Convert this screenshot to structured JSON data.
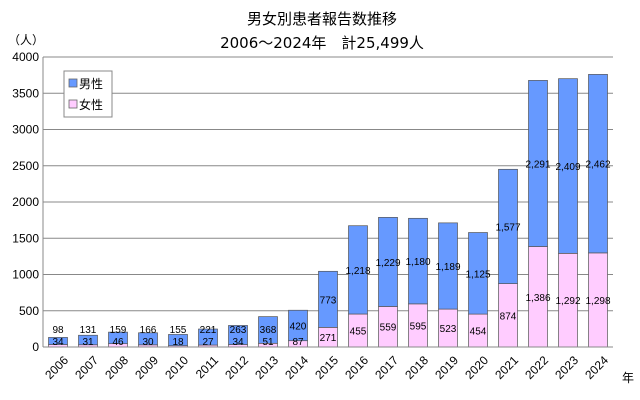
{
  "chart_data": {
    "type": "bar",
    "stacked": true,
    "title": "男女別患者報告数推移",
    "subtitle": "2006～2024年　計25,499人",
    "ylabel": "（人）",
    "xlabel": "年",
    "ylim": [
      0,
      4000
    ],
    "yticks": [
      0,
      500,
      1000,
      1500,
      2000,
      2500,
      3000,
      3500,
      4000
    ],
    "grid": true,
    "legend_position": "top-left",
    "categories": [
      "2006",
      "2007",
      "2008",
      "2009",
      "2010",
      "2011",
      "2012",
      "2013",
      "2014",
      "2015",
      "2016",
      "2017",
      "2018",
      "2019",
      "2020",
      "2021",
      "2022",
      "2023",
      "2024"
    ],
    "series": [
      {
        "name": "女性",
        "color": "#FFCCFF",
        "values": [
          34,
          31,
          46,
          30,
          18,
          27,
          34,
          51,
          87,
          271,
          455,
          559,
          595,
          523,
          454,
          874,
          1386,
          1292,
          1298
        ]
      },
      {
        "name": "男性",
        "color": "#6699FF",
        "values": [
          98,
          131,
          159,
          166,
          155,
          221,
          263,
          368,
          420,
          773,
          1218,
          1229,
          1180,
          1189,
          1125,
          1577,
          2291,
          2409,
          2462
        ]
      }
    ]
  }
}
